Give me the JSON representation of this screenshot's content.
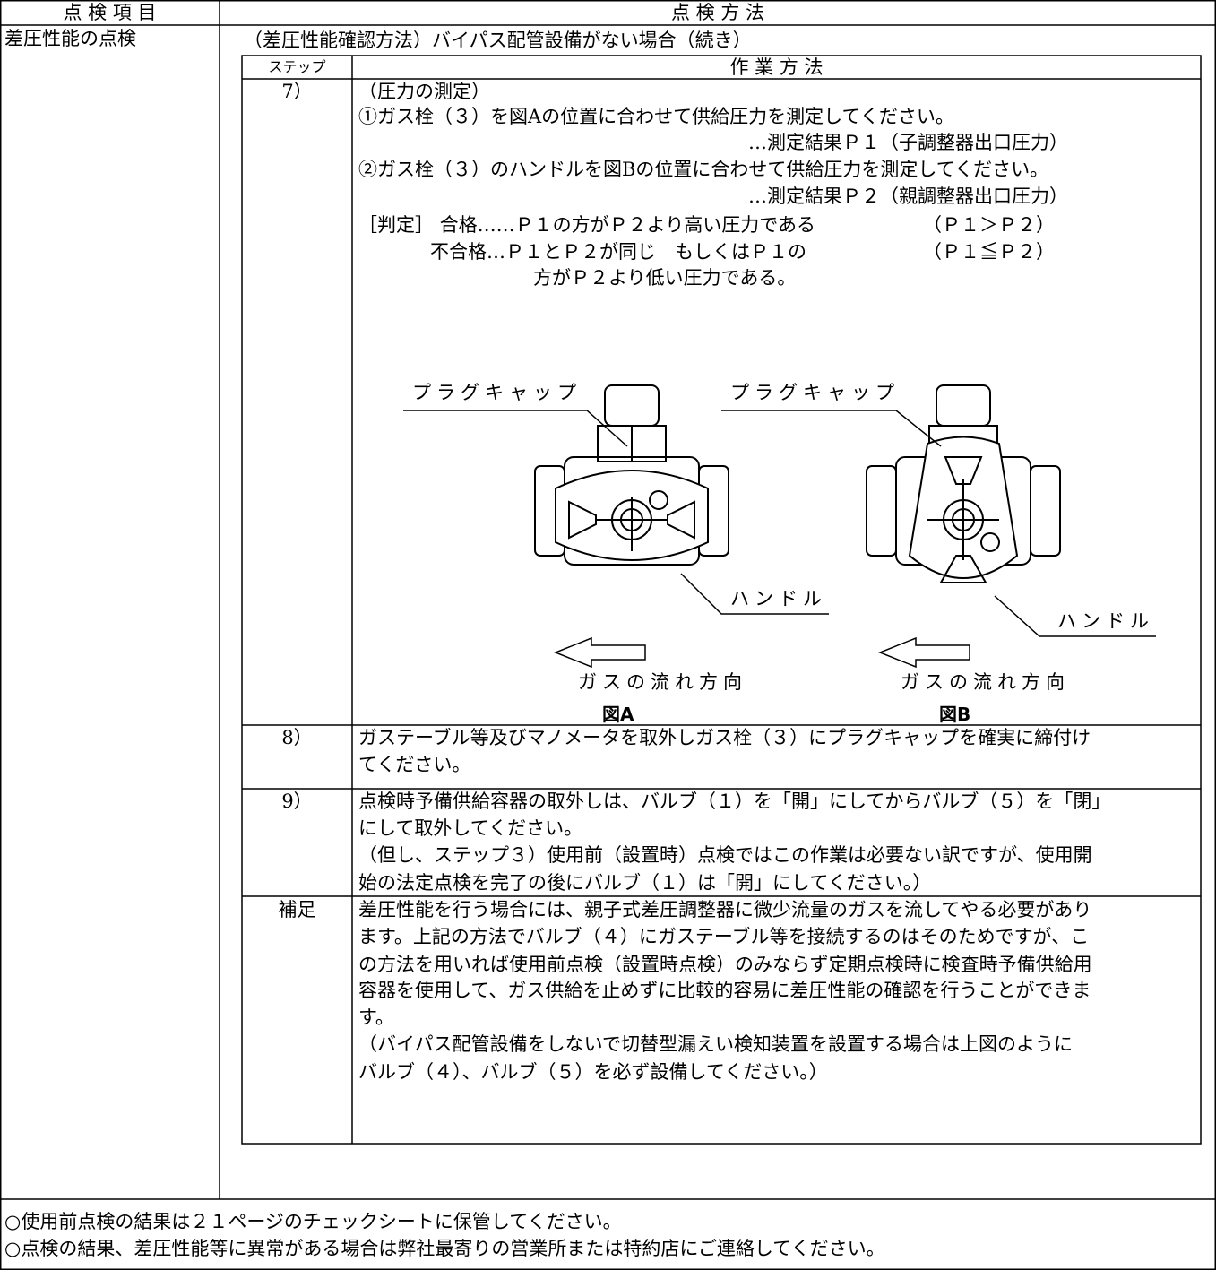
{
  "header": {
    "item": "点 検 項 目",
    "method": "点 検 方 法"
  },
  "item": "差圧性能の点検",
  "section_title": "（差圧性能確認方法）バイパス配管設備がない場合（続き）",
  "steps_table": {
    "header": {
      "step": "ステップ",
      "method": "作 業 方 法"
    },
    "rows": [
      {
        "step": "7）",
        "lines": [
          "（圧力の測定）",
          "①ガス栓（３）を図Aの位置に合わせて供給圧力を測定してください。",
          "…測定結果Ｐ１（子調整器出口圧力）",
          "②ガス栓（３）のハンドルを図Bの位置に合わせて供給圧力を測定してください。",
          "…測定結果Ｐ２（親調整器出口圧力）",
          "［判定］ 合格……Ｐ１の方がＰ２より高い圧力である",
          "（Ｐ１＞Ｐ２）",
          "不合格…Ｐ１とＰ２が同じ　もしくはＰ１の",
          "（Ｐ１≦Ｐ２）",
          "方がＰ２より低い圧力である。"
        ]
      },
      {
        "step": "8）",
        "lines": [
          "ガステーブル等及びマノメータを取外しガス栓（３）にプラグキャップを確実に締付け",
          "てください。"
        ]
      },
      {
        "step": "9）",
        "lines": [
          "点検時予備供給容器の取外しは、バルブ（１）を「開」にしてからバルブ（５）を「閉」",
          "にして取外してください。",
          "（但し、ステップ３）使用前（設置時）点検ではこの作業は必要ない訳ですが、使用開",
          "始の法定点検を完了の後にバルブ（１）は「開」にしてください。）"
        ]
      },
      {
        "step": "補足",
        "lines": [
          "差圧性能を行う場合には、親子式差圧調整器に微少流量のガスを流してやる必要があり",
          "ます。上記の方法でバルブ（４）にガステーブル等を接続するのはそのためですが、こ",
          "の方法を用いれば使用前点検（設置時点検）のみならず定期点検時に検査時予備供給用",
          "容器を使用して、ガス供給を止めずに比較的容易に差圧性能の確認を行うことができま",
          "す。",
          "（バイパス配管設備をしないで切替型漏えい検知装置を設置する場合は上図のように",
          "バルブ（４）、バルブ（５）を必ず設備してください。）"
        ]
      }
    ]
  },
  "figures": [
    {
      "cap_label": "プラグキャップ",
      "handle_label": "ハンドル",
      "flow_label": "ガスの流れ方向",
      "caption": "図A"
    },
    {
      "cap_label": "プラグキャップ",
      "handle_label": "ハンドル",
      "flow_label": "ガスの流れ方向",
      "caption": "図B"
    }
  ],
  "notes": [
    "○使用前点検の結果は２１ページのチェックシートに保管してください。",
    "○点検の結果、差圧性能等に異常がある場合は弊社最寄りの営業所または特約店にご連絡してください。"
  ]
}
